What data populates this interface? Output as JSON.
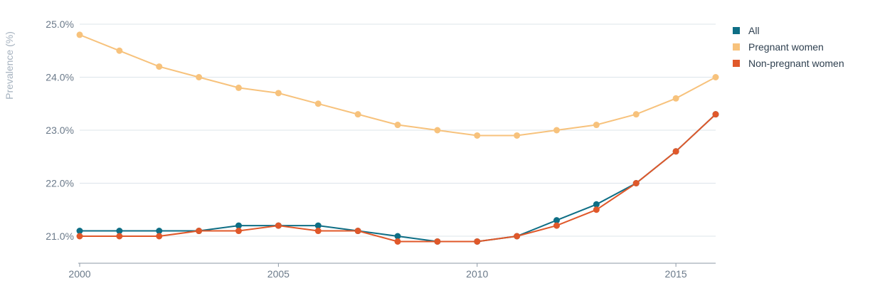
{
  "chart_data": {
    "type": "line",
    "title": "",
    "xlabel": "",
    "ylabel": "Prevalence (%)",
    "x": [
      2000,
      2001,
      2002,
      2003,
      2004,
      2005,
      2006,
      2007,
      2008,
      2009,
      2010,
      2011,
      2012,
      2013,
      2014,
      2015,
      2016
    ],
    "xlim": [
      2000,
      2016
    ],
    "ylim": [
      20.5,
      25.0
    ],
    "xticks": [
      2000,
      2005,
      2010,
      2015
    ],
    "xtick_labels": [
      "2000",
      "2005",
      "2010",
      "2015"
    ],
    "yticks": [
      21,
      22,
      23,
      24,
      25
    ],
    "ytick_labels": [
      "21.0%",
      "22.0%",
      "23.0%",
      "24.0%",
      "25.0%"
    ],
    "grid": true,
    "legend_position": "top-right",
    "series": [
      {
        "name": "All",
        "color": "#0e6e85",
        "values": [
          21.1,
          21.1,
          21.1,
          21.1,
          21.2,
          21.2,
          21.2,
          21.1,
          21.0,
          20.9,
          20.9,
          21.0,
          21.3,
          21.6,
          22.0,
          22.6,
          23.3
        ]
      },
      {
        "name": "Pregnant women",
        "color": "#f7c27c",
        "values": [
          24.8,
          24.5,
          24.2,
          24.0,
          23.8,
          23.7,
          23.5,
          23.3,
          23.1,
          23.0,
          22.9,
          22.9,
          23.0,
          23.1,
          23.3,
          23.6,
          24.0
        ]
      },
      {
        "name": "Non-pregnant women",
        "color": "#e0582a",
        "values": [
          21.0,
          21.0,
          21.0,
          21.1,
          21.1,
          21.2,
          21.1,
          21.1,
          20.9,
          20.9,
          20.9,
          21.0,
          21.2,
          21.5,
          22.0,
          22.6,
          23.3
        ]
      }
    ]
  }
}
